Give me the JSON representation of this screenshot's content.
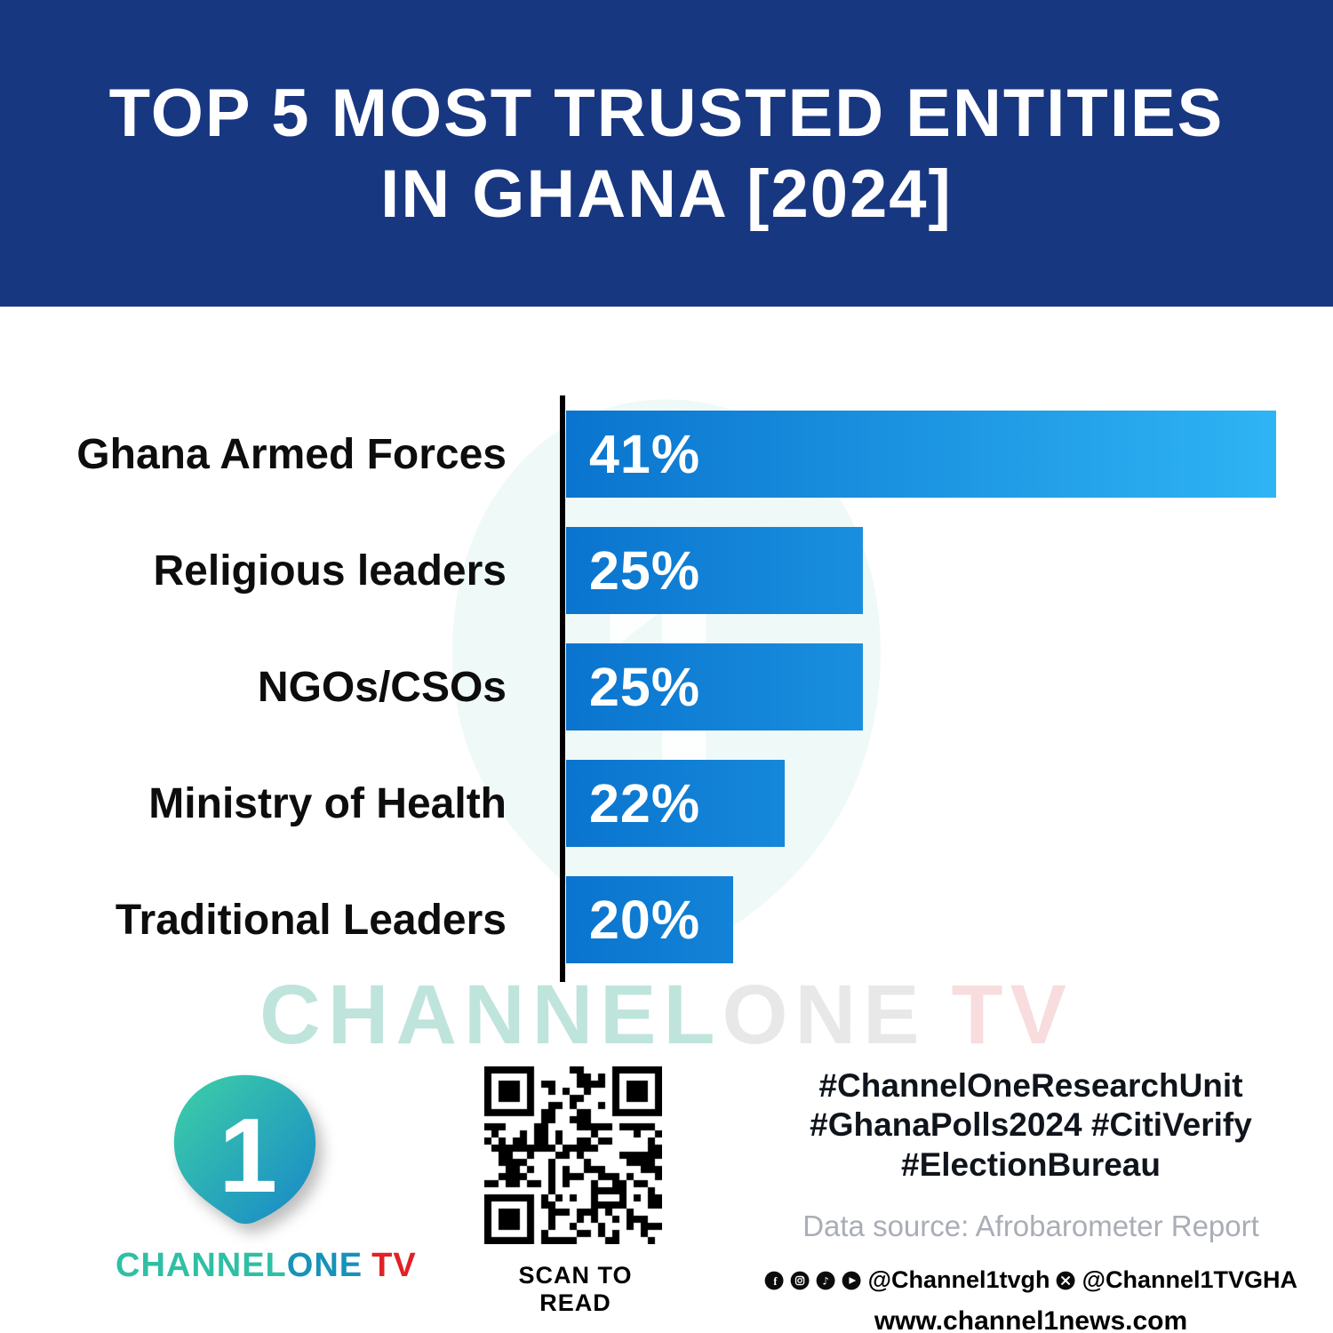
{
  "header": {
    "title_line1": "TOP 5 MOST TRUSTED ENTITIES",
    "title_line2": "IN GHANA [2024]"
  },
  "chart_data": {
    "type": "bar",
    "orientation": "horizontal",
    "title": "TOP 5 MOST TRUSTED ENTITIES IN GHANA [2024]",
    "categories": [
      "Ghana Armed Forces",
      "Religious leaders",
      "NGOs/CSOs",
      "Ministry of Health",
      "Traditional Leaders"
    ],
    "values": [
      41,
      25,
      25,
      22,
      20
    ],
    "value_labels": [
      "41%",
      "25%",
      "25%",
      "22%",
      "20%"
    ],
    "xlabel": "",
    "ylabel": "",
    "xlim": [
      0,
      41
    ],
    "grid": false,
    "legend": false,
    "bar_color_start": "#0a74ce",
    "bar_color_end": "#2fb5f5"
  },
  "watermark": {
    "part1": "CHANNEL",
    "part2": "ONE",
    "part3": "TV",
    "full": "CHANNELONE TV"
  },
  "brand": {
    "channel": "CHANNEL",
    "one": "ONE",
    "tv": "TV",
    "logo_numeral": "1"
  },
  "footer": {
    "qr_caption": "SCAN TO READ",
    "hashtags": [
      "#ChannelOneResearchUnit",
      "#GhanaPolls2024 #CitiVerify",
      "#ElectionBureau"
    ],
    "source": "Data source: Afrobarometer Report",
    "handle_main": "@Channel1tvgh",
    "handle_x": "@Channel1TVGHA",
    "website": "www.channel1news.com"
  },
  "icons": {
    "facebook": "f",
    "instagram": "camera-outline",
    "tiktok": "music-note",
    "youtube": "play-triangle",
    "x": "x-cross"
  },
  "colors": {
    "header_bg": "#183781",
    "bar_gradient_start": "#0a74ce",
    "bar_gradient_end": "#2fb5f5",
    "brand_teal": "#2fbfa4",
    "brand_blue": "#1792b8",
    "brand_red": "#e02227",
    "hashtag_text": "#10151c",
    "source_gray": "#a9aeb6",
    "axis_black": "#000000"
  }
}
